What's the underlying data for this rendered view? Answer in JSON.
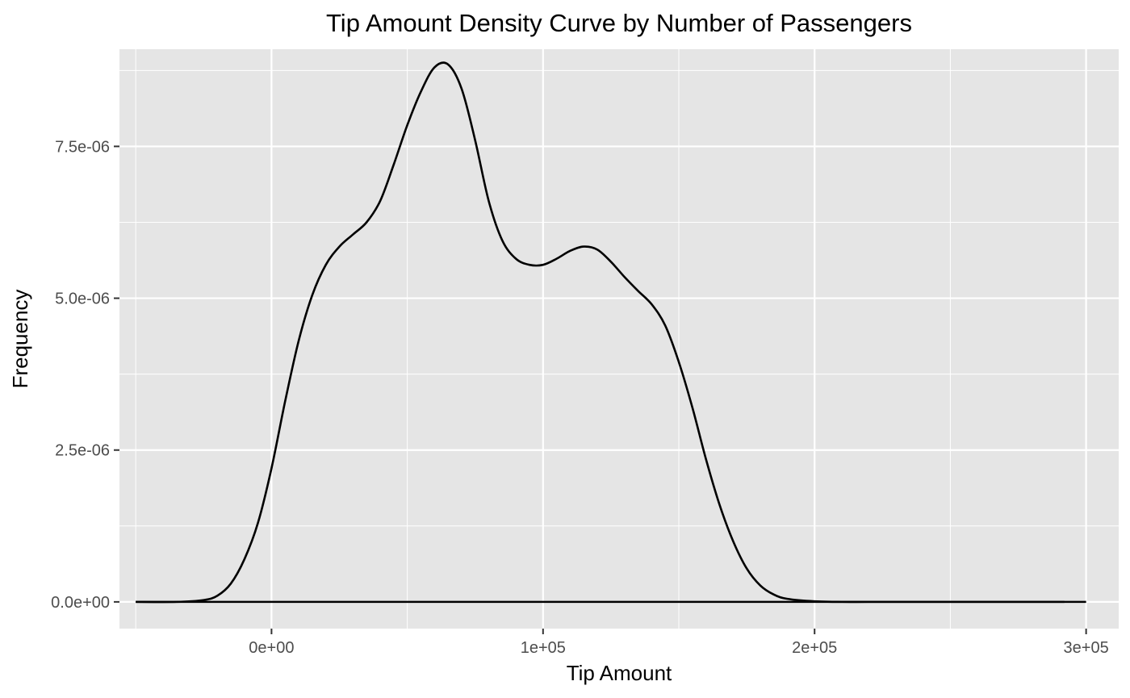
{
  "chart_data": {
    "type": "area",
    "title": "Tip Amount Density Curve by Number of Passengers",
    "xlabel": "Tip Amount",
    "ylabel": "Frequency",
    "xlim": [
      -56000,
      312000
    ],
    "ylim": [
      -4.4e-07,
      9.1e-06
    ],
    "x_ticks": [
      {
        "value": 0,
        "label": "0e+00"
      },
      {
        "value": 100000,
        "label": "1e+05"
      },
      {
        "value": 200000,
        "label": "2e+05"
      },
      {
        "value": 300000,
        "label": "3e+05"
      }
    ],
    "y_ticks": [
      {
        "value": 0,
        "label": "0.0e+00"
      },
      {
        "value": 2.5e-06,
        "label": "2.5e-06"
      },
      {
        "value": 5e-06,
        "label": "5.0e-06"
      },
      {
        "value": 7.5e-06,
        "label": "7.5e-06"
      }
    ],
    "grid": true,
    "panel_background": "#e5e5e5",
    "grid_color": "#ffffff",
    "line_color": "#000000",
    "series": [
      {
        "x": [
          -50000,
          -35000,
          -25000,
          -20000,
          -15000,
          -10000,
          -5000,
          0,
          5000,
          10000,
          15000,
          20000,
          25000,
          30000,
          35000,
          40000,
          45000,
          50000,
          55000,
          60000,
          65000,
          70000,
          75000,
          80000,
          85000,
          90000,
          95000,
          100000,
          105000,
          110000,
          115000,
          120000,
          125000,
          130000,
          135000,
          140000,
          145000,
          150000,
          155000,
          160000,
          165000,
          170000,
          175000,
          180000,
          185000,
          190000,
          200000,
          210000,
          220000,
          240000,
          260000,
          280000,
          292000
        ],
        "y": [
          0,
          0.0,
          3e-08,
          1e-07,
          3e-07,
          7e-07,
          1.3e-06,
          2.2e-06,
          3.3e-06,
          4.3e-06,
          5.05e-06,
          5.55e-06,
          5.85e-06,
          6.05e-06,
          6.25e-06,
          6.6e-06,
          7.2e-06,
          7.85e-06,
          8.4e-06,
          8.8e-06,
          8.85e-06,
          8.45e-06,
          7.6e-06,
          6.6e-06,
          5.95e-06,
          5.65e-06,
          5.55e-06,
          5.55e-06,
          5.65e-06,
          5.78e-06,
          5.85e-06,
          5.8e-06,
          5.6e-06,
          5.35e-06,
          5.12e-06,
          4.9e-06,
          4.55e-06,
          3.95e-06,
          3.2e-06,
          2.35e-06,
          1.6e-06,
          1e-06,
          5.5e-07,
          2.7e-07,
          1.2e-07,
          5e-08,
          1e-08,
          0,
          0,
          0,
          0,
          0,
          0
        ]
      }
    ],
    "baseline_range": [
      -50000,
      300000
    ]
  }
}
